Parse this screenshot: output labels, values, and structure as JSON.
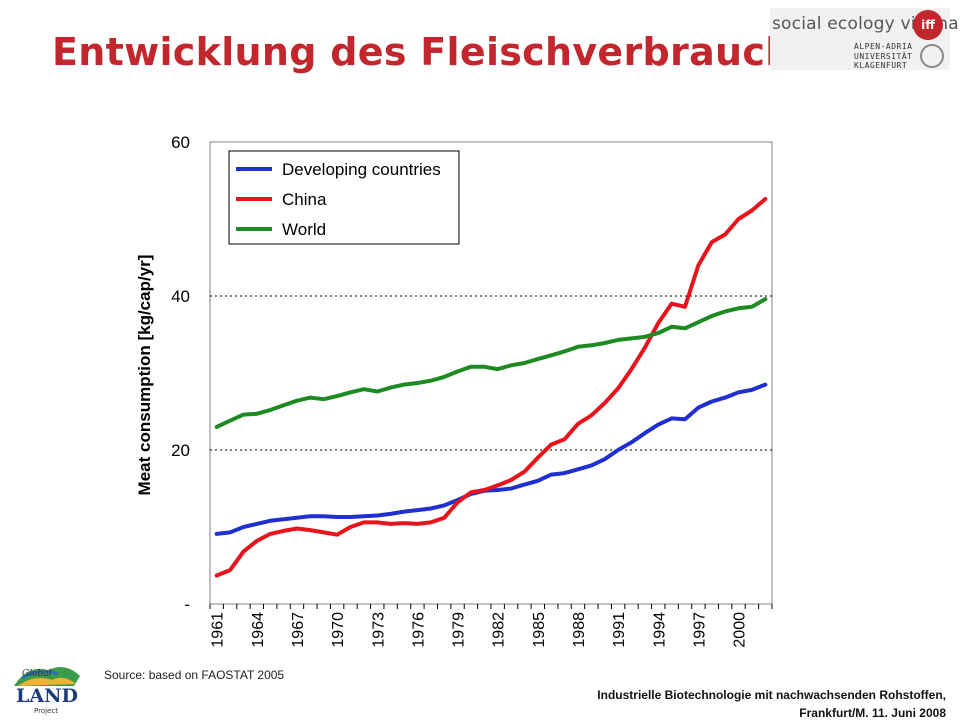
{
  "slide": {
    "title": "Entwicklung des Fleischverbrauches",
    "source": "Source: based on FAOSTAT 2005",
    "footer_line1": "Industrielle Biotechnologie mit nachwachsenden Rohstoffen,",
    "footer_line2": "Frankfurt/M. 11. Juni 2008"
  },
  "logos": {
    "social_ecology": "social ecology vienna",
    "iff": "iff",
    "university": "ALPEN-ADRIA\nUNIVERSITÄT\nKLAGENFURT",
    "global_land": "Global LAND Project"
  },
  "chart_data": {
    "type": "line",
    "ylabel": "Meat consumption [kg/cap/yr]",
    "ylim": [
      0,
      60
    ],
    "yticks": [
      "-",
      "20",
      "40",
      "60"
    ],
    "xticks": [
      "1961",
      "1964",
      "1967",
      "1970",
      "1973",
      "1976",
      "1979",
      "1982",
      "1985",
      "1988",
      "1991",
      "1994",
      "1997",
      "2000"
    ],
    "x": [
      1961,
      1962,
      1963,
      1964,
      1965,
      1966,
      1967,
      1968,
      1969,
      1970,
      1971,
      1972,
      1973,
      1974,
      1975,
      1976,
      1977,
      1978,
      1979,
      1980,
      1981,
      1982,
      1983,
      1984,
      1985,
      1986,
      1987,
      1988,
      1989,
      1990,
      1991,
      1992,
      1993,
      1994,
      1995,
      1996,
      1997,
      1998,
      1999,
      2000,
      2001,
      2002
    ],
    "grid": "dotted horizontal at 20 and 40",
    "legend": "top-left",
    "series": [
      {
        "name": "Developing countries",
        "color": "#1f2fd0",
        "values": [
          9.1,
          9.3,
          10.0,
          10.4,
          10.8,
          11.0,
          11.2,
          11.4,
          11.4,
          11.3,
          11.3,
          11.4,
          11.5,
          11.7,
          12.0,
          12.2,
          12.4,
          12.8,
          13.5,
          14.3,
          14.7,
          14.8,
          15.0,
          15.5,
          16.0,
          16.8,
          17.0,
          17.5,
          18.0,
          18.8,
          20.0,
          21.0,
          22.2,
          23.3,
          24.1,
          24.0,
          25.5,
          26.3,
          26.8,
          27.5,
          27.8,
          28.5
        ]
      },
      {
        "name": "China",
        "color": "#e8131b",
        "values": [
          3.7,
          4.4,
          6.8,
          8.2,
          9.1,
          9.5,
          9.8,
          9.6,
          9.3,
          9.0,
          10.0,
          10.6,
          10.6,
          10.4,
          10.5,
          10.4,
          10.6,
          11.2,
          13.2,
          14.5,
          14.8,
          15.4,
          16.1,
          17.2,
          19.0,
          20.7,
          21.4,
          23.4,
          24.5,
          26.1,
          28.0,
          30.5,
          33.3,
          36.5,
          39.0,
          38.6,
          44.0,
          47.0,
          48.0,
          50.0,
          51.1,
          52.6
        ]
      },
      {
        "name": "World",
        "color": "#1d8a22",
        "values": [
          23.0,
          23.8,
          24.6,
          24.7,
          25.2,
          25.8,
          26.4,
          26.8,
          26.6,
          27.0,
          27.5,
          27.9,
          27.6,
          28.1,
          28.5,
          28.7,
          29.0,
          29.5,
          30.2,
          30.8,
          30.8,
          30.5,
          31.0,
          31.3,
          31.8,
          32.3,
          32.8,
          33.4,
          33.6,
          33.9,
          34.3,
          34.5,
          34.7,
          35.2,
          36.0,
          35.8,
          36.6,
          37.4,
          38.0,
          38.4,
          38.6,
          39.6
        ]
      }
    ]
  }
}
